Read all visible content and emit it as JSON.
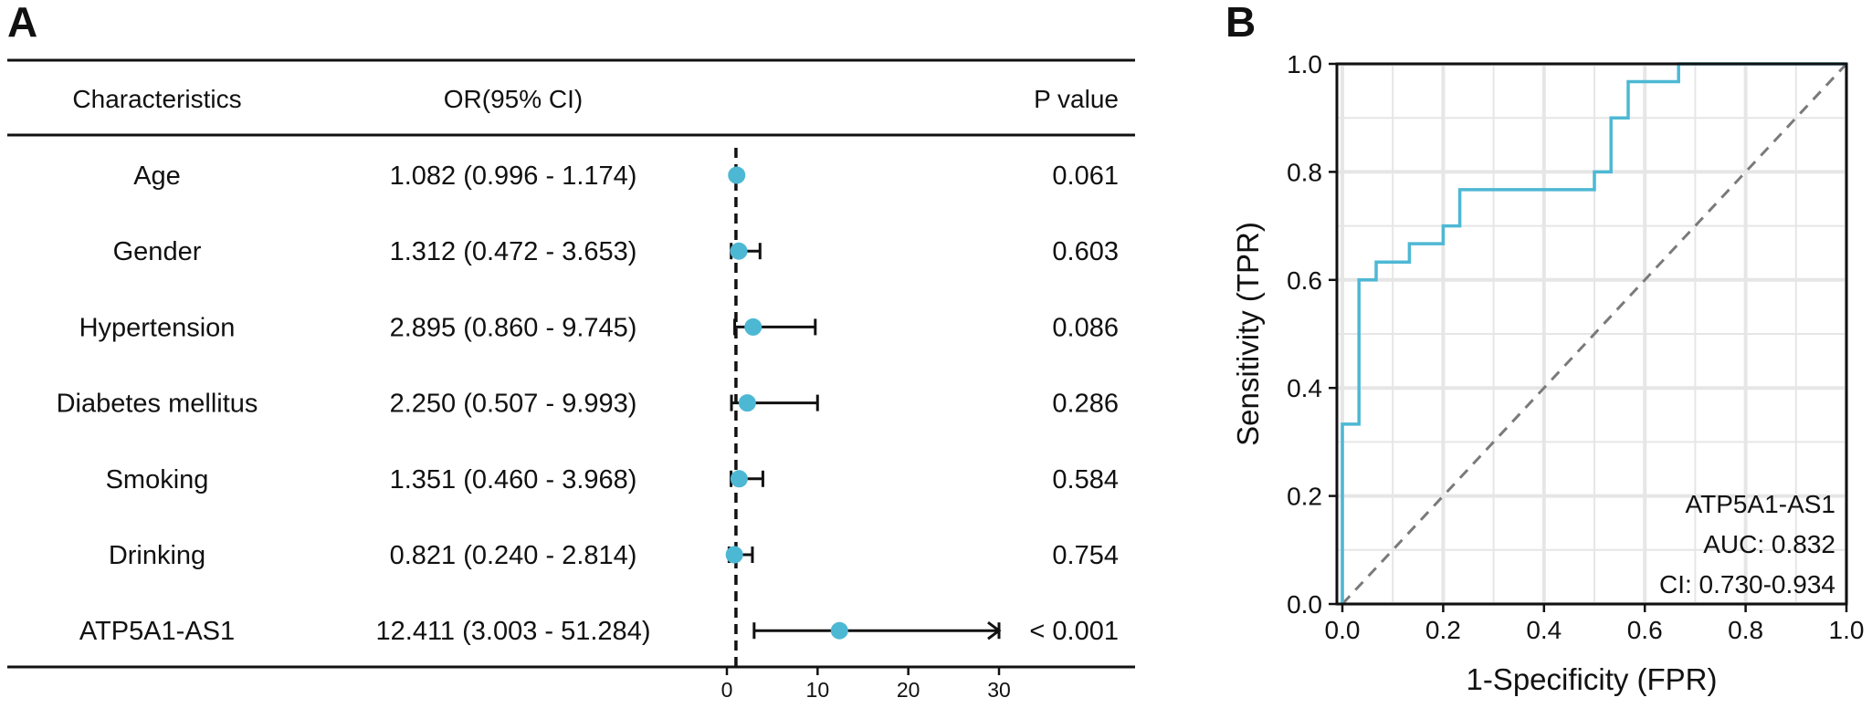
{
  "panel_a_label": "A",
  "panel_b_label": "B",
  "colors": {
    "accent": "#4DB8D4",
    "ink": "#111111",
    "grid": "#E6E6E6",
    "diag": "#7A7A7A"
  },
  "chart_data": [
    {
      "type": "forest",
      "headers": {
        "characteristics": "Characteristics",
        "or_ci": "OR(95% CI)",
        "p_value": "P value"
      },
      "reference_line": 1,
      "xlim": [
        0,
        30
      ],
      "xticks": [
        0,
        10,
        20,
        30
      ],
      "rows": [
        {
          "name": "Age",
          "or_text": "1.082 (0.996 - 1.174)",
          "or": 1.082,
          "lower": 0.996,
          "upper": 1.174,
          "p": "0.061"
        },
        {
          "name": "Gender",
          "or_text": "1.312 (0.472 - 3.653)",
          "or": 1.312,
          "lower": 0.472,
          "upper": 3.653,
          "p": "0.603"
        },
        {
          "name": "Hypertension",
          "or_text": "2.895 (0.860 - 9.745)",
          "or": 2.895,
          "lower": 0.86,
          "upper": 9.745,
          "p": "0.086"
        },
        {
          "name": "Diabetes mellitus",
          "or_text": "2.250 (0.507 - 9.993)",
          "or": 2.25,
          "lower": 0.507,
          "upper": 9.993,
          "p": "0.286"
        },
        {
          "name": "Smoking",
          "or_text": "1.351 (0.460 - 3.968)",
          "or": 1.351,
          "lower": 0.46,
          "upper": 3.968,
          "p": "0.584"
        },
        {
          "name": "Drinking",
          "or_text": "0.821 (0.240 - 2.814)",
          "or": 0.821,
          "lower": 0.24,
          "upper": 2.814,
          "p": "0.754"
        },
        {
          "name": "ATP5A1-AS1",
          "or_text": "12.411 (3.003 - 51.284)",
          "or": 12.411,
          "lower": 3.003,
          "upper": 51.284,
          "p": "< 0.001",
          "truncated_at": 30
        }
      ]
    },
    {
      "type": "line",
      "subtype": "roc",
      "xlabel": "1-Specificity (FPR)",
      "ylabel": "Sensitivity (TPR)",
      "xlim": [
        0,
        1
      ],
      "ylim": [
        0,
        1
      ],
      "xticks": [
        "0.0",
        "0.2",
        "0.4",
        "0.6",
        "0.8",
        "1.0"
      ],
      "yticks": [
        "0.0",
        "0.2",
        "0.4",
        "0.6",
        "0.8",
        "1.0"
      ],
      "grid": true,
      "diagonal_reference": true,
      "series": [
        {
          "name": "ATP5A1-AS1",
          "x": [
            0,
            0,
            0.033,
            0.033,
            0.067,
            0.067,
            0.133,
            0.133,
            0.2,
            0.2,
            0.233,
            0.233,
            0.5,
            0.5,
            0.533,
            0.533,
            0.567,
            0.567,
            0.667,
            0.667,
            1.0
          ],
          "y": [
            0,
            0.333,
            0.333,
            0.6,
            0.6,
            0.633,
            0.633,
            0.667,
            0.667,
            0.7,
            0.7,
            0.767,
            0.767,
            0.8,
            0.8,
            0.9,
            0.9,
            0.967,
            0.967,
            1.0,
            1.0
          ]
        }
      ],
      "legend": {
        "position": "bottom-right",
        "lines": [
          "ATP5A1-AS1",
          "AUC: 0.832",
          "CI: 0.730-0.934"
        ]
      }
    }
  ]
}
